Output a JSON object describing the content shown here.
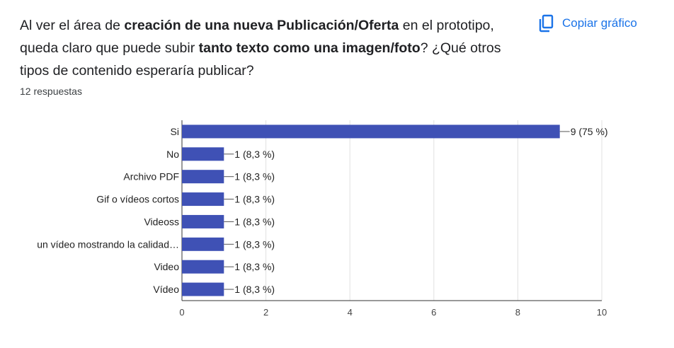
{
  "question": {
    "parts": [
      {
        "text": "Al ver el área de ",
        "bold": false
      },
      {
        "text": "creación de una nueva Publicación/Oferta",
        "bold": true
      },
      {
        "text": " en el prototipo, queda claro que puede subir ",
        "bold": false
      },
      {
        "text": "tanto texto como una imagen/foto",
        "bold": true
      },
      {
        "text": "? ¿Qué otros tipos de contenido esperaría publicar?",
        "bold": false
      }
    ]
  },
  "responses_label": "12 respuestas",
  "copy_button": {
    "label": "Copiar gráfico",
    "icon": "copy-icon"
  },
  "colors": {
    "bar": "#3f51b5",
    "accent": "#1a73e8",
    "grid": "#e0e0e0",
    "axis": "#333333"
  },
  "chart_data": {
    "type": "bar",
    "orientation": "horizontal",
    "categories": [
      "Si",
      "No",
      "Archivo PDF",
      "Gif o vídeos cortos",
      "Videoss",
      "un vídeo mostrando la calidad…",
      "Video",
      "Vídeo"
    ],
    "values": [
      9,
      1,
      1,
      1,
      1,
      1,
      1,
      1
    ],
    "data_labels": [
      "9 (75 %)",
      "1 (8,3 %)",
      "1 (8,3 %)",
      "1 (8,3 %)",
      "1 (8,3 %)",
      "1 (8,3 %)",
      "1 (8,3 %)",
      "1 (8,3 %)"
    ],
    "xlim": [
      0,
      10
    ],
    "xticks": [
      0,
      2,
      4,
      6,
      8,
      10
    ],
    "grid": true
  }
}
